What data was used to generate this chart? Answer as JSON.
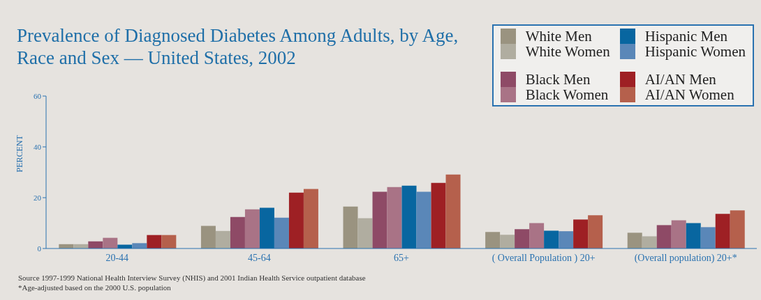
{
  "chart_data": {
    "type": "bar",
    "title": "Prevalence of Diagnosed Diabetes Among Adults, by Age, Race and Sex — United States, 2002",
    "ylabel": "PERCENT",
    "categories": [
      "20-44",
      "45-64",
      "65+",
      "( Overall Population ) 20+",
      "(Overall  population) 20+*"
    ],
    "series": [
      {
        "name": "White Men",
        "color": "#9a9380",
        "values": [
          1.7,
          8.9,
          16.5,
          6.5,
          6.2
        ]
      },
      {
        "name": "White Women",
        "color": "#b0ada0",
        "values": [
          1.7,
          6.9,
          11.9,
          5.4,
          4.8
        ]
      },
      {
        "name": "Black Men",
        "color": "#8e4a66",
        "values": [
          2.8,
          12.4,
          22.3,
          7.6,
          9.2
        ]
      },
      {
        "name": "Black Women",
        "color": "#a97386",
        "values": [
          4.2,
          15.4,
          24.2,
          10.0,
          11.1
        ]
      },
      {
        "name": "Hispanic Men",
        "color": "#0866a0",
        "values": [
          1.5,
          16.0,
          24.7,
          7.0,
          10.0
        ]
      },
      {
        "name": "Hispanic Women",
        "color": "#5a87b8",
        "values": [
          2.1,
          12.1,
          22.3,
          6.8,
          8.4
        ]
      },
      {
        "name": "AI/AN Men",
        "color": "#9e2024",
        "values": [
          5.3,
          22.0,
          25.8,
          11.4,
          13.6
        ]
      },
      {
        "name": "AI/AN Women",
        "color": "#b5604c",
        "values": [
          5.3,
          23.4,
          29.1,
          13.1,
          15.0
        ]
      }
    ],
    "ylim": [
      0,
      60
    ],
    "yticks": [
      0,
      20,
      40,
      60
    ],
    "grid": false,
    "legend": "top right",
    "annotations": [
      "Source 1997-1999 National Health Interview Survey (NHIS) and 2001 Indian Health Service outpatient database",
      "*Age-adjusted based on the 2000 U.S. population"
    ]
  }
}
